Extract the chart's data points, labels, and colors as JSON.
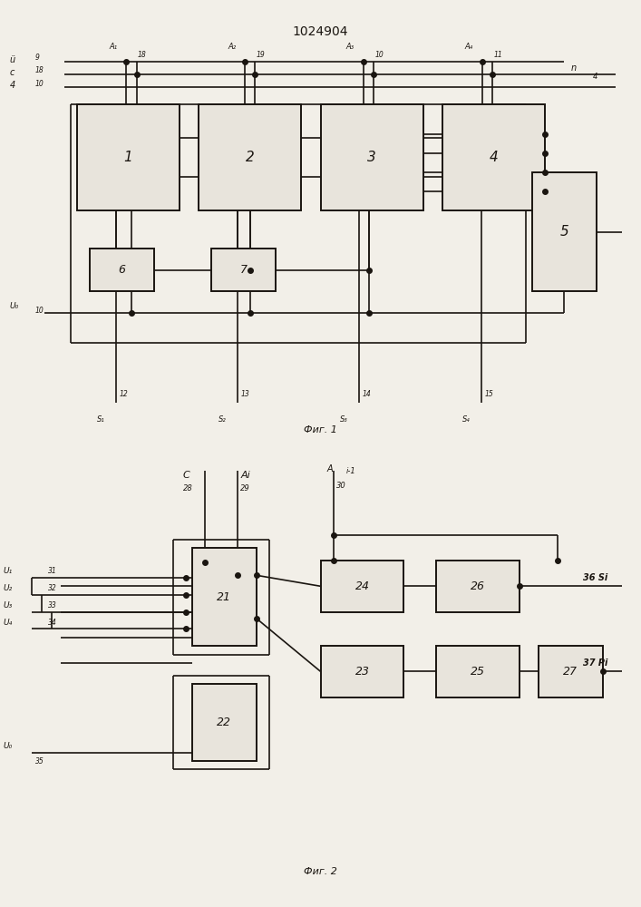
{
  "title": "1024904",
  "fig1_cap": "Фиг. 1",
  "fig2_cap": "Фиг. 2",
  "bg": "#f2efe8",
  "lc": "#1a1510",
  "fc": "#e8e4dc"
}
